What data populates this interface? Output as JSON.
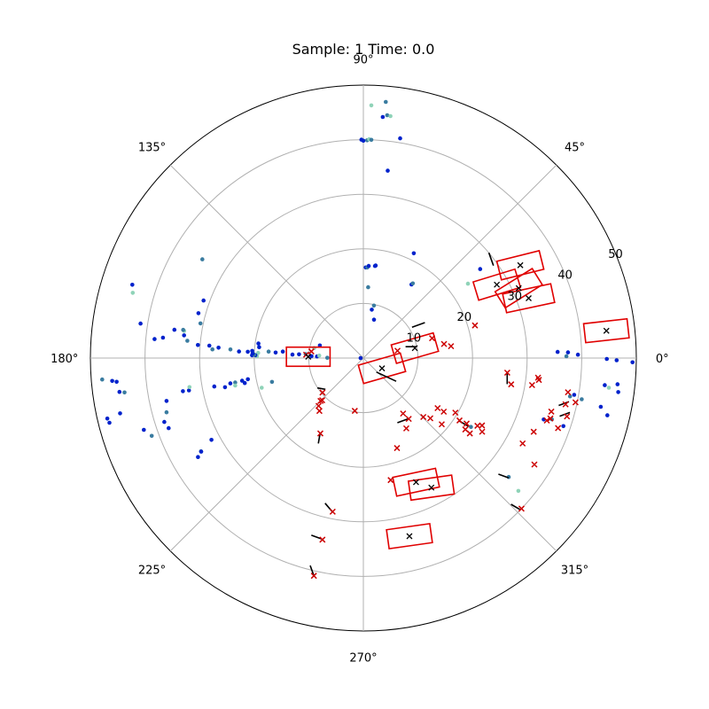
{
  "chart_data": {
    "type": "scatter",
    "projection": "polar",
    "title": "Sample: 1 Time: 0.0",
    "rlim": [
      0,
      50
    ],
    "r_ticks": [
      10,
      20,
      30,
      40,
      50
    ],
    "r_tick_labels": [
      "10",
      "20",
      "30",
      "40",
      "50"
    ],
    "r_label_angle_deg": 22.5,
    "theta_ticks_deg": [
      0,
      45,
      90,
      135,
      180,
      225,
      270,
      315
    ],
    "theta_tick_labels": [
      "0°",
      "45°",
      "90°",
      "135°",
      "180°",
      "225°",
      "270°",
      "315°"
    ],
    "grid": true,
    "colors": {
      "points_primary": "#0022cc",
      "points_secondary": "#3a7ca0",
      "points_light": "#8fd3b8",
      "box": "#e00000",
      "marker": "#cc0000",
      "arrow": "#000000",
      "grid": "#b0b0b0"
    },
    "points": [
      [
        1.8,
        35.6,
        0
      ],
      [
        1.6,
        37.5,
        0
      ],
      [
        0.9,
        39.3,
        0
      ],
      [
        0.5,
        37.2,
        1
      ],
      [
        359.8,
        44.6,
        0
      ],
      [
        359.5,
        46.4,
        0
      ],
      [
        359.1,
        49.3,
        0
      ],
      [
        353.6,
        44.5,
        0
      ],
      [
        354.1,
        46.8,
        0
      ],
      [
        352.4,
        47.1,
        0
      ],
      [
        353.1,
        45.3,
        2
      ],
      [
        350.1,
        39.2,
        0
      ],
      [
        349.3,
        40.7,
        1
      ],
      [
        346.8,
        45.9,
        0
      ],
      [
        348.4,
        44.4,
        0
      ],
      [
        349.5,
        38.5,
        1
      ],
      [
        341.2,
        38.7,
        0
      ],
      [
        342.0,
        36.3,
        1
      ],
      [
        341.2,
        34.9,
        0
      ],
      [
        320.7,
        34.4,
        1
      ],
      [
        319.4,
        37.4,
        2
      ],
      [
        327.4,
        23.4,
        1
      ],
      [
        90.0,
        39.8,
        0
      ],
      [
        90.5,
        40.0,
        0
      ],
      [
        89.0,
        39.9,
        1
      ],
      [
        88.5,
        40.1,
        2
      ],
      [
        87.9,
        40.0,
        1
      ],
      [
        88.2,
        46.3,
        2
      ],
      [
        85.4,
        44.3,
        0
      ],
      [
        84.4,
        44.7,
        1
      ],
      [
        83.6,
        44.6,
        2
      ],
      [
        85.0,
        47.1,
        1
      ],
      [
        80.5,
        40.8,
        0
      ],
      [
        82.6,
        34.6,
        0
      ],
      [
        88.5,
        16.6,
        0
      ],
      [
        87.5,
        16.6,
        1
      ],
      [
        86.7,
        16.9,
        0
      ],
      [
        82.8,
        17.0,
        0
      ],
      [
        82.4,
        17.1,
        0
      ],
      [
        86.1,
        13.0,
        1
      ],
      [
        80.1,
        9.0,
        0
      ],
      [
        78.6,
        9.8,
        1
      ],
      [
        74.5,
        7.3,
        0
      ],
      [
        64.3,
        21.3,
        0
      ],
      [
        56.8,
        16.1,
        0
      ],
      [
        56.5,
        16.4,
        1
      ],
      [
        37.3,
        26.9,
        0
      ],
      [
        35.4,
        23.5,
        2
      ],
      [
        172.1,
        19.4,
        0
      ],
      [
        174.1,
        19.2,
        0
      ],
      [
        177.2,
        19.3,
        2
      ],
      [
        176.3,
        20.4,
        0
      ],
      [
        176.1,
        17.4,
        1
      ],
      [
        176.4,
        16.1,
        0
      ],
      [
        175.4,
        14.8,
        0
      ],
      [
        177.2,
        13.0,
        0
      ],
      [
        176.7,
        11.8,
        0
      ],
      [
        176.1,
        10.6,
        1
      ],
      [
        177.9,
        9.5,
        0
      ],
      [
        178.0,
        8.5,
        0
      ],
      [
        176.8,
        8.1,
        2
      ],
      [
        168.5,
        9.2,
        2
      ],
      [
        163.9,
        8.3,
        0
      ],
      [
        179.6,
        6.6,
        1
      ],
      [
        180.0,
        0.5,
        0
      ],
      [
        178.6,
        20.4,
        0
      ],
      [
        179.0,
        19.5,
        2
      ],
      [
        178.5,
        19.8,
        0
      ],
      [
        178.2,
        20.0,
        1
      ],
      [
        177.7,
        20.3,
        0
      ],
      [
        176.9,
        21.2,
        0
      ],
      [
        177.0,
        22.8,
        0
      ],
      [
        176.3,
        24.4,
        1
      ],
      [
        175.9,
        26.6,
        0
      ],
      [
        175.4,
        28.3,
        0
      ],
      [
        176.7,
        27.7,
        1
      ],
      [
        175.5,
        30.4,
        0
      ],
      [
        174.4,
        32.4,
        1
      ],
      [
        172.8,
        33.1,
        0
      ],
      [
        171.5,
        35.0,
        0
      ],
      [
        168.0,
        30.5,
        1
      ],
      [
        164.8,
        31.3,
        0
      ],
      [
        160.2,
        31.1,
        0
      ],
      [
        148.5,
        34.6,
        1
      ],
      [
        162.4,
        44.4,
        0
      ],
      [
        164.2,
        43.9,
        2
      ],
      [
        171.2,
        41.3,
        0
      ],
      [
        174.8,
        38.4,
        0
      ],
      [
        174.2,
        36.9,
        0
      ],
      [
        171.4,
        33.2,
        2
      ],
      [
        190.8,
        27.8,
        0
      ],
      [
        190.8,
        24.8,
        0
      ],
      [
        190.8,
        23.9,
        1
      ],
      [
        190.6,
        22.6,
        0
      ],
      [
        191.9,
        25.9,
        0
      ],
      [
        192.1,
        24.0,
        2
      ],
      [
        190.4,
        21.5,
        0
      ],
      [
        191.9,
        22.2,
        0
      ],
      [
        196.3,
        19.4,
        2
      ],
      [
        194.6,
        17.3,
        1
      ],
      [
        190.5,
        32.5,
        0
      ],
      [
        189.5,
        32.3,
        2
      ],
      [
        190.4,
        33.6,
        0
      ],
      [
        192.3,
        36.9,
        0
      ],
      [
        197.8,
        38.3,
        0
      ],
      [
        195.4,
        37.4,
        1
      ],
      [
        198.1,
        42.3,
        0
      ],
      [
        199.8,
        37.9,
        0
      ],
      [
        200.2,
        41.3,
        1
      ],
      [
        184.7,
        48.0,
        1
      ],
      [
        185.2,
        46.2,
        0
      ],
      [
        185.5,
        45.4,
        0
      ],
      [
        187.9,
        45.1,
        0
      ],
      [
        188.2,
        44.2,
        1
      ],
      [
        192.8,
        45.7,
        0
      ],
      [
        193.3,
        48.2,
        0
      ],
      [
        194.3,
        48.0,
        0
      ],
      [
        171.1,
        33.4,
        1
      ],
      [
        208.3,
        31.6,
        0
      ],
      [
        209.9,
        34.3,
        1
      ],
      [
        210.0,
        34.3,
        0
      ],
      [
        210.9,
        35.3,
        0
      ]
    ],
    "boxes": [
      [
        6.4,
        44.8,
        6.4,
        8.0,
        3.5
      ],
      [
        19.9,
        32.2,
        12.0,
        9.0,
        3.5
      ],
      [
        24.2,
        31.2,
        32.0,
        8.0,
        3.5
      ],
      [
        30.6,
        33.4,
        14.0,
        8.0,
        3.5
      ],
      [
        28.8,
        27.9,
        17.0,
        8.0,
        3.5
      ],
      [
        10.9,
        9.6,
        16.0,
        8.0,
        3.5
      ],
      [
        178.6,
        10.1,
        0.0,
        8.0,
        3.5
      ],
      [
        331.1,
        3.9,
        16.0,
        8.0,
        3.5
      ],
      [
        293.0,
        24.7,
        12.0,
        8.0,
        3.5
      ],
      [
        297.7,
        26.8,
        8.0,
        8.0,
        3.5
      ],
      [
        284.5,
        33.7,
        8.0,
        8.0,
        3.5
      ]
    ],
    "markers": [
      [
        16.3,
        21.3
      ],
      [
        7.7,
        16.2
      ],
      [
        12.1,
        6.4
      ],
      [
        16.1,
        13.1
      ],
      [
        354.2,
        26.5
      ],
      [
        350.5,
        38.0
      ],
      [
        352.9,
        32.4
      ],
      [
        348.2,
        39.7
      ],
      [
        347.1,
        38.0
      ],
      [
        344.0,
        38.8
      ],
      [
        342.1,
        36.0
      ],
      [
        341.2,
        35.5
      ],
      [
        340.2,
        37.9
      ],
      [
        331.8,
        33.1
      ],
      [
        328.1,
        36.9
      ],
      [
        316.4,
        40.0
      ],
      [
        330.4,
        25.0
      ],
      [
        328.2,
        25.6
      ],
      [
        329.3,
        24.3
      ],
      [
        327.6,
        22.4
      ],
      [
        327.0,
        21.0
      ],
      [
        325.0,
        22.8
      ],
      [
        324.7,
        23.9
      ],
      [
        329.3,
        19.6
      ],
      [
        326.3,
        17.7
      ],
      [
        326.0,
        16.4
      ],
      [
        319.8,
        18.8
      ],
      [
        318.0,
        16.5
      ],
      [
        306.7,
        13.9
      ],
      [
        305.6,
        12.5
      ],
      [
        349.9,
        27.5
      ],
      [
        350.9,
        31.3
      ],
      [
        353.6,
        32.2
      ],
      [
        336.6,
        34.0
      ],
      [
        344.1,
        35.8
      ],
      [
        315.5,
        15.4
      ],
      [
        301.4,
        15.1
      ],
      [
        290.5,
        17.6
      ],
      [
        282.6,
        22.9
      ],
      [
        258.7,
        28.7
      ],
      [
        257.3,
        34.1
      ],
      [
        257.2,
        40.9
      ],
      [
        220.2,
        9.8
      ],
      [
        225.7,
        10.8
      ],
      [
        225.0,
        11.1
      ],
      [
        226.9,
        12.0
      ],
      [
        230.3,
        12.6
      ],
      [
        240.3,
        15.9
      ],
      [
        260.8,
        9.8
      ],
      [
        172.8,
        9.6
      ],
      [
        176.7,
        10.5
      ],
      [
        9.9,
        15.0
      ]
    ],
    "arrows": [
      [
        313.0,
        3.5,
        335.0,
        4.0
      ],
      [
        15.0,
        8.0,
        0.0,
        2.0
      ],
      [
        30.0,
        13.0,
        200.0,
        2.5
      ],
      [
        40.0,
        30.0,
        290.0,
        2.5
      ],
      [
        348.0,
        38.5,
        200.0,
        2.0
      ],
      [
        343.5,
        37.5,
        20.0,
        2.0
      ],
      [
        320.5,
        34.5,
        160.0,
        2.0
      ],
      [
        316.0,
        40.0,
        150.0,
        2.0
      ],
      [
        354.0,
        26.5,
        270.0,
        2.0
      ],
      [
        327.0,
        23.0,
        150.0,
        2.0
      ],
      [
        306.0,
        13.8,
        200.0,
        2.0
      ],
      [
        240.0,
        15.8,
        260.0,
        2.0
      ],
      [
        258.5,
        28.7,
        130.0,
        2.0
      ],
      [
        257.0,
        34.0,
        160.0,
        2.0
      ],
      [
        257.2,
        40.9,
        110.0,
        2.0
      ],
      [
        219.5,
        9.0,
        170.0,
        1.5
      ]
    ]
  }
}
